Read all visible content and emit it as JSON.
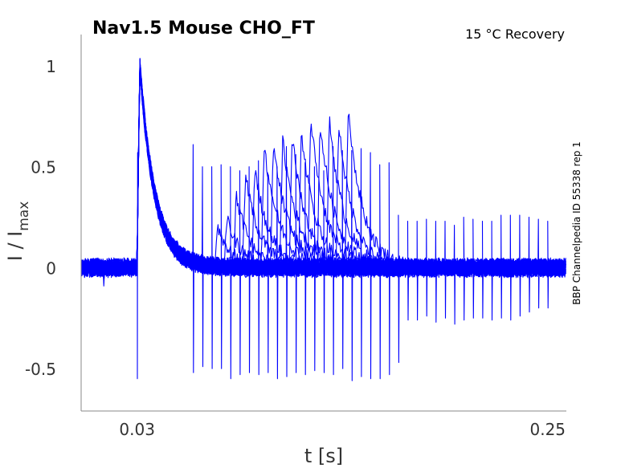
{
  "chart_data": {
    "type": "line",
    "title": "Nav1.5  Mouse  CHO_FT",
    "subtitle": "15 °C  Recovery",
    "side_label": "BBP Channelpedia ID 55338 rep 1",
    "xlabel": "t [s]",
    "ylabel_main": "I / I",
    "ylabel_sub": "max",
    "xlim": [
      0,
      0.26
    ],
    "ylim": [
      -0.71,
      1.155
    ],
    "xticks": [
      0.03,
      0.25
    ],
    "xtick_labels": [
      "0.03",
      "0.25"
    ],
    "yticks": [
      1,
      0.5,
      0,
      -0.5
    ],
    "ytick_labels": [
      "1",
      "0.5",
      "0",
      "-0.5"
    ],
    "grid": false,
    "series_color": "#0000ff",
    "prepulse": {
      "t": 0.03,
      "peak": 1.0,
      "spike_down": -0.55,
      "decay_tau_s": 0.008
    },
    "test_pulse_times_s": [
      0.06,
      0.065,
      0.07,
      0.075,
      0.08,
      0.085,
      0.09,
      0.095,
      0.1,
      0.105,
      0.11,
      0.115,
      0.12,
      0.125,
      0.13,
      0.135,
      0.14,
      0.145,
      0.15,
      0.155,
      0.16,
      0.165,
      0.17,
      0.175,
      0.18,
      0.185,
      0.19,
      0.195,
      0.2,
      0.205,
      0.21,
      0.215,
      0.22,
      0.225,
      0.23,
      0.235,
      0.24,
      0.245,
      0.25
    ],
    "recovered_peak": [
      0,
      0,
      0.22,
      0.24,
      0.37,
      0.46,
      0.5,
      0.6,
      0.6,
      0.62,
      0.66,
      0.68,
      0.74,
      0.72,
      0.74,
      0.72,
      0.79,
      0,
      0,
      0,
      0,
      0,
      0,
      0,
      0,
      0,
      0,
      0,
      0,
      0,
      0,
      0,
      0,
      0,
      0,
      0,
      0,
      0,
      0
    ],
    "spike_up": [
      0.61,
      0.5,
      0.5,
      0.51,
      0.5,
      0.48,
      0.5,
      0.53,
      0.47,
      0.5,
      0.6,
      0.56,
      0.52,
      0.5,
      0.48,
      0.6,
      0.58,
      0.58,
      0.59,
      0.57,
      0.51,
      0.52,
      0.26,
      0.23,
      0.23,
      0.24,
      0.23,
      0.23,
      0.21,
      0.25,
      0.24,
      0.23,
      0.23,
      0.26,
      0.26,
      0.26,
      0.25,
      0.24,
      0.23
    ],
    "spike_down": [
      -0.52,
      -0.49,
      -0.5,
      -0.5,
      -0.55,
      -0.53,
      -0.52,
      -0.53,
      -0.52,
      -0.55,
      -0.54,
      -0.52,
      -0.53,
      -0.51,
      -0.52,
      -0.53,
      -0.5,
      -0.56,
      -0.54,
      -0.55,
      -0.55,
      -0.53,
      -0.47,
      -0.26,
      -0.26,
      -0.24,
      -0.27,
      -0.25,
      -0.28,
      -0.26,
      -0.25,
      -0.25,
      -0.26,
      -0.25,
      -0.26,
      -0.24,
      -0.22,
      -0.2,
      -0.2
    ]
  }
}
